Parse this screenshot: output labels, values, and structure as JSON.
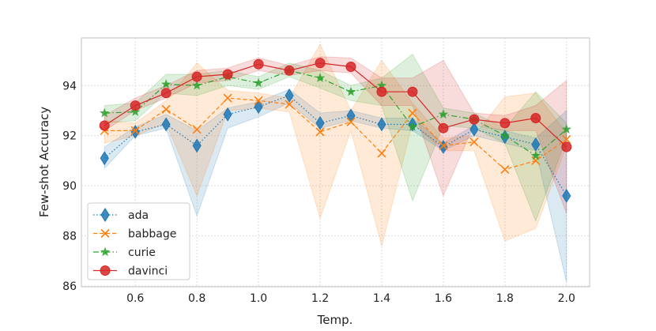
{
  "chart_data": {
    "type": "line",
    "title": "",
    "xlabel": "Temp.",
    "ylabel": "Few-shot Accuracy",
    "xlim": [
      0.425,
      2.075
    ],
    "ylim": [
      85.97,
      95.9
    ],
    "xticks": [
      0.6,
      0.8,
      1.0,
      1.2,
      1.4,
      1.6,
      1.8,
      2.0
    ],
    "xtick_labels": [
      "0.6",
      "0.8",
      "1.0",
      "1.2",
      "1.4",
      "1.6",
      "1.8",
      "2.0"
    ],
    "yticks": [
      86,
      88,
      90,
      92,
      94
    ],
    "ytick_labels": [
      "86",
      "88",
      "90",
      "92",
      "94"
    ],
    "grid": true,
    "legend_position": "bottom-left",
    "x": [
      0.5,
      0.6,
      0.7,
      0.8,
      0.9,
      1.0,
      1.1,
      1.2,
      1.3,
      1.4,
      1.5,
      1.6,
      1.7,
      1.8,
      1.9,
      2.0
    ],
    "series": [
      {
        "name": "ada",
        "color": "#1f77b4",
        "marker": "diamond",
        "linestyle": "dotted",
        "values": [
          91.1,
          92.15,
          92.45,
          91.6,
          92.85,
          93.15,
          93.6,
          92.5,
          92.8,
          92.45,
          92.45,
          91.55,
          92.25,
          91.95,
          91.65,
          89.6
        ],
        "lower": [
          90.7,
          92.0,
          92.3,
          88.8,
          92.3,
          92.75,
          93.3,
          92.3,
          92.6,
          92.3,
          92.2,
          91.4,
          92.0,
          91.7,
          91.4,
          86.15
        ],
        "upper": [
          91.55,
          92.35,
          92.85,
          92.2,
          93.1,
          93.35,
          93.85,
          92.9,
          93.0,
          92.7,
          92.7,
          91.7,
          92.4,
          92.2,
          91.9,
          93.0
        ]
      },
      {
        "name": "babbage",
        "color": "#ff7f0e",
        "marker": "x",
        "linestyle": "dashed",
        "values": [
          92.2,
          92.2,
          93.05,
          92.25,
          93.5,
          93.4,
          93.25,
          92.15,
          92.55,
          91.3,
          92.9,
          91.6,
          91.75,
          90.65,
          91.0,
          91.85
        ],
        "lower": [
          91.7,
          92.0,
          92.5,
          89.6,
          93.0,
          93.1,
          92.95,
          88.7,
          92.2,
          87.6,
          92.5,
          91.4,
          91.4,
          87.8,
          88.3,
          91.6
        ],
        "upper": [
          92.6,
          92.5,
          93.4,
          94.9,
          93.8,
          93.7,
          93.5,
          95.65,
          93.0,
          95.0,
          93.3,
          91.9,
          92.0,
          93.55,
          93.7,
          92.1
        ]
      },
      {
        "name": "curie",
        "color": "#2ca02c",
        "marker": "star",
        "linestyle": "dashdot",
        "values": [
          92.9,
          92.95,
          94.05,
          94.0,
          94.35,
          94.1,
          94.6,
          94.3,
          93.75,
          94.0,
          92.35,
          92.85,
          92.65,
          92.0,
          91.2,
          92.25
        ],
        "lower": [
          92.5,
          92.6,
          93.7,
          93.6,
          94.0,
          93.85,
          94.35,
          93.9,
          93.4,
          93.2,
          89.4,
          92.4,
          92.3,
          91.7,
          88.6,
          91.9
        ],
        "upper": [
          93.2,
          93.3,
          94.45,
          94.45,
          94.6,
          94.35,
          94.9,
          94.6,
          94.0,
          94.3,
          95.25,
          93.1,
          92.9,
          92.3,
          93.75,
          92.5
        ]
      },
      {
        "name": "davinci",
        "color": "#d62728",
        "marker": "circle",
        "linestyle": "solid",
        "values": [
          92.4,
          93.2,
          93.7,
          94.35,
          94.45,
          94.85,
          94.6,
          94.9,
          94.75,
          93.75,
          93.75,
          92.3,
          92.65,
          92.5,
          92.7,
          91.55
        ],
        "lower": [
          92.2,
          93.0,
          93.5,
          94.1,
          94.2,
          94.6,
          94.4,
          94.6,
          94.5,
          93.2,
          93.2,
          89.6,
          92.45,
          92.2,
          92.2,
          88.9
        ],
        "upper": [
          92.8,
          93.5,
          94.0,
          94.6,
          94.7,
          95.1,
          94.8,
          95.15,
          95.1,
          94.3,
          94.3,
          95.0,
          92.9,
          92.8,
          93.2,
          94.2
        ]
      }
    ]
  }
}
